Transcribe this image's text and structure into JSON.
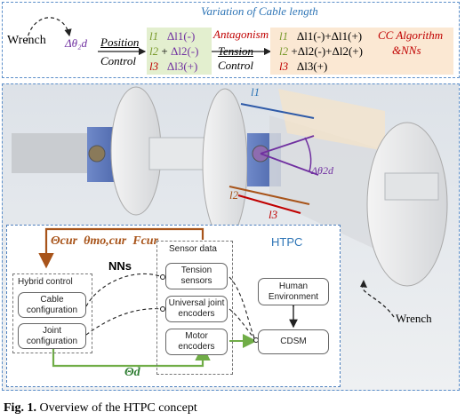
{
  "top": {
    "title": "Variation of Cable length",
    "wrench": "Wrench",
    "delta_theta": "Δθ₂d",
    "position": "Position",
    "control": "Control",
    "antagonism": "Antagonism",
    "tension": "Tension",
    "control2": "Control",
    "cc_algorithm": "CC Algorithm",
    "nns": "&NNs",
    "left_cables": [
      {
        "l": "l1",
        "dl": "Δl1(-)",
        "prefix": ""
      },
      {
        "l": "l2",
        "dl": "Δl2(-)",
        "prefix": "+"
      },
      {
        "l": "l3",
        "dl": "Δl3(+)",
        "prefix": ""
      }
    ],
    "right_cables": [
      {
        "l": "l1",
        "dl": "Δl1(-)+Δl1(+)",
        "prefix": ""
      },
      {
        "l": "l2",
        "dl": "Δl2(-)+Δl2(+)",
        "prefix": "+"
      },
      {
        "l": "l3",
        "dl": "Δl3(+)",
        "prefix": ""
      }
    ]
  },
  "photo": {
    "l1": "l1",
    "l2": "l2",
    "l3": "l3",
    "delta_theta": "Δθ2d",
    "wrench": "Wrench"
  },
  "htpc": {
    "title": "HTPC",
    "feedback": "Θcur  θmo,cur  Fcur",
    "nns": "NNs",
    "theta_d": "Θd",
    "hybrid_control": "Hybrid control",
    "cable_config": "Cable configuration",
    "joint_config": "Joint configuration",
    "sensor_data": "Sensor data",
    "tension_sensors": "Tension sensors",
    "universal_encoders": "Universal joint encoders",
    "motor_encoders": "Motor encoders",
    "human_env": "Human Environment",
    "cdsm": "CDSM"
  },
  "caption": {
    "label": "Fig. 1.",
    "text": "Overview of the HTPC concept"
  },
  "colors": {
    "l1": "#7a9b2e",
    "l2": "#7a9b2e",
    "l3": "#c00000",
    "delta": "#7030a0",
    "accent_red": "#c00000",
    "feedback": "#a8541a",
    "theta_d_arrow": "#70ad47",
    "panel_border": "#5b8ec9"
  }
}
